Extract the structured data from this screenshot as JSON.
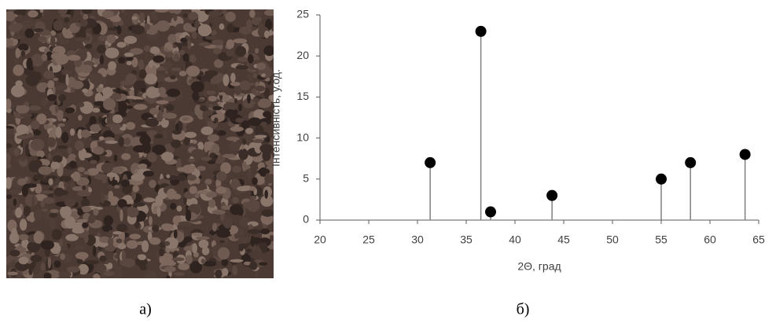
{
  "panels": [
    "а)",
    "б)"
  ],
  "chart_data": {
    "type": "stem",
    "xlabel": "2Θ, град",
    "ylabel": "Інтенсивність, у.од.",
    "x": [
      31.3,
      36.5,
      37.5,
      43.8,
      55.0,
      58.0,
      63.6
    ],
    "values": [
      7,
      23,
      1,
      3,
      5,
      7,
      8
    ],
    "color": "#000000",
    "stem_color": "#7f7f7f",
    "xlim": [
      20,
      65
    ],
    "xticks": [
      20,
      25,
      30,
      35,
      40,
      45,
      50,
      55,
      60,
      65
    ],
    "ylim": [
      0,
      25
    ],
    "yticks": [
      0,
      5,
      10,
      15,
      20,
      25
    ],
    "grid": false
  }
}
